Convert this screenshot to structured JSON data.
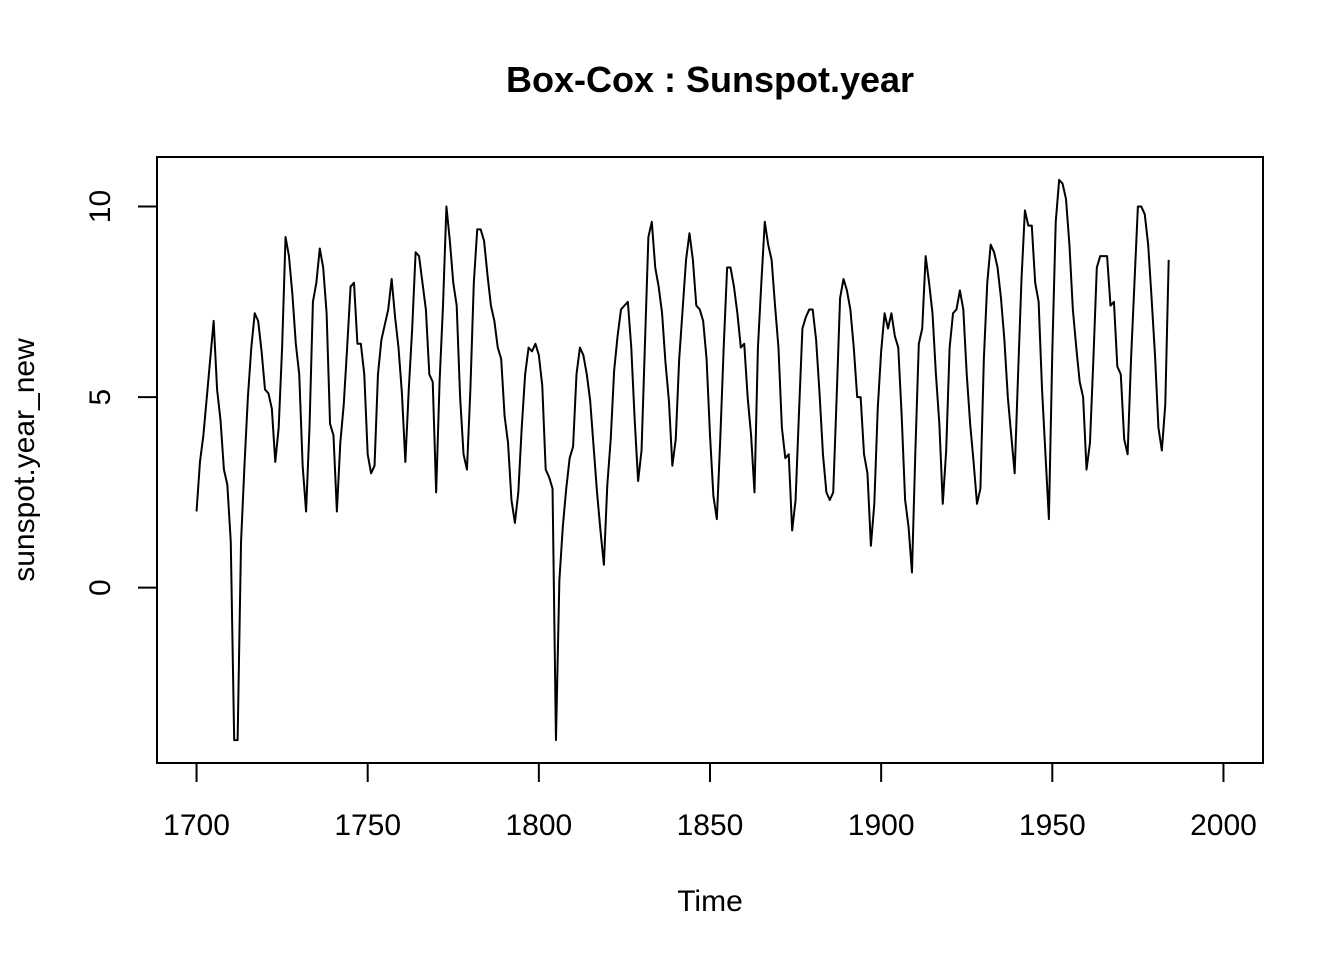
{
  "chart_data": {
    "type": "line",
    "title": "Box-Cox : Sunspot.year",
    "xlabel": "Time",
    "ylabel": "sunspot.year_new",
    "xlim": [
      1688.45,
      2011.55
    ],
    "ylim": [
      -4.6,
      11.3
    ],
    "x_ticks": [
      1700,
      1750,
      1800,
      1850,
      1900,
      1950,
      2000
    ],
    "x_tick_labels": [
      "1700",
      "1750",
      "1800",
      "1850",
      "1900",
      "1950",
      "2000"
    ],
    "y_ticks": [
      0,
      5,
      10
    ],
    "y_tick_labels": [
      "0",
      "5",
      "10"
    ],
    "grid": false,
    "legend": "none",
    "line_color": "#000000",
    "series": [
      {
        "x_start": 1700,
        "x_step": 1,
        "values": [
          2.0,
          3.3,
          4.0,
          5.0,
          6.0,
          7.0,
          5.2,
          4.4,
          3.1,
          2.7,
          1.2,
          -4.0,
          -4.0,
          1.2,
          3.2,
          5.0,
          6.3,
          7.2,
          7.0,
          6.2,
          5.2,
          5.1,
          4.7,
          3.3,
          4.2,
          6.3,
          9.2,
          8.7,
          7.7,
          6.4,
          5.6,
          3.2,
          2.0,
          4.2,
          7.5,
          8.0,
          8.9,
          8.4,
          7.2,
          4.3,
          4.0,
          2.0,
          3.8,
          4.8,
          6.3,
          7.9,
          8.0,
          6.4,
          6.4,
          5.6,
          3.5,
          3.0,
          3.2,
          5.6,
          6.5,
          6.9,
          7.3,
          8.1,
          7.1,
          6.3,
          5.1,
          3.3,
          5.2,
          6.8,
          8.8,
          8.7,
          8.0,
          7.3,
          5.6,
          5.4,
          2.5,
          5.4,
          7.4,
          10.0,
          9.1,
          8.0,
          7.4,
          5.0,
          3.5,
          3.1,
          5.2,
          8.0,
          9.4,
          9.4,
          9.1,
          8.2,
          7.4,
          7.0,
          6.3,
          6.0,
          4.5,
          3.8,
          2.3,
          1.7,
          2.5,
          4.2,
          5.6,
          6.3,
          6.2,
          6.4,
          6.1,
          5.3,
          3.1,
          2.9,
          2.6,
          -4.0,
          0.2,
          1.6,
          2.6,
          3.4,
          3.7,
          5.6,
          6.3,
          6.1,
          5.6,
          4.9,
          3.7,
          2.5,
          1.5,
          0.6,
          2.7,
          3.9,
          5.7,
          6.6,
          7.3,
          7.4,
          7.5,
          6.3,
          4.4,
          2.8,
          3.6,
          6.4,
          9.2,
          9.6,
          8.4,
          7.9,
          7.2,
          5.9,
          4.9,
          3.2,
          3.9,
          6.0,
          7.3,
          8.6,
          9.3,
          8.6,
          7.4,
          7.3,
          7.0,
          6.0,
          4.0,
          2.4,
          1.8,
          3.9,
          6.3,
          8.4,
          8.4,
          7.9,
          7.2,
          6.3,
          6.4,
          5.0,
          4.0,
          2.5,
          6.3,
          8.0,
          9.6,
          9.0,
          8.6,
          7.4,
          6.3,
          4.2,
          3.4,
          3.5,
          1.5,
          2.3,
          4.6,
          6.8,
          7.1,
          7.3,
          7.3,
          6.5,
          5.1,
          3.5,
          2.5,
          2.3,
          2.5,
          5.0,
          7.6,
          8.1,
          7.8,
          7.3,
          6.3,
          5.0,
          5.0,
          3.5,
          3.0,
          1.1,
          2.2,
          4.7,
          6.2,
          7.2,
          6.8,
          7.2,
          6.6,
          6.3,
          4.5,
          2.3,
          1.6,
          0.4,
          3.6,
          6.4,
          6.8,
          8.7,
          8.0,
          7.2,
          5.6,
          4.3,
          2.2,
          3.6,
          6.3,
          7.2,
          7.3,
          7.8,
          7.3,
          5.6,
          4.3,
          3.3,
          2.2,
          2.6,
          6.0,
          8.0,
          9.0,
          8.8,
          8.4,
          7.6,
          6.5,
          5.0,
          4.0,
          3.0,
          5.6,
          8.1,
          9.9,
          9.5,
          9.5,
          8.0,
          7.5,
          5.2,
          3.5,
          1.8,
          6.2,
          9.6,
          10.7,
          10.6,
          10.2,
          9.0,
          7.3,
          6.3,
          5.4,
          5.0,
          3.1,
          3.8,
          6.0,
          8.4,
          8.7,
          8.7,
          8.7,
          7.4,
          7.5,
          5.8,
          5.6,
          3.9,
          3.5,
          6.0,
          8.0,
          10.0,
          10.0,
          9.8,
          9.0,
          7.6,
          6.1,
          4.2,
          3.6,
          4.8,
          8.6
        ]
      }
    ]
  }
}
